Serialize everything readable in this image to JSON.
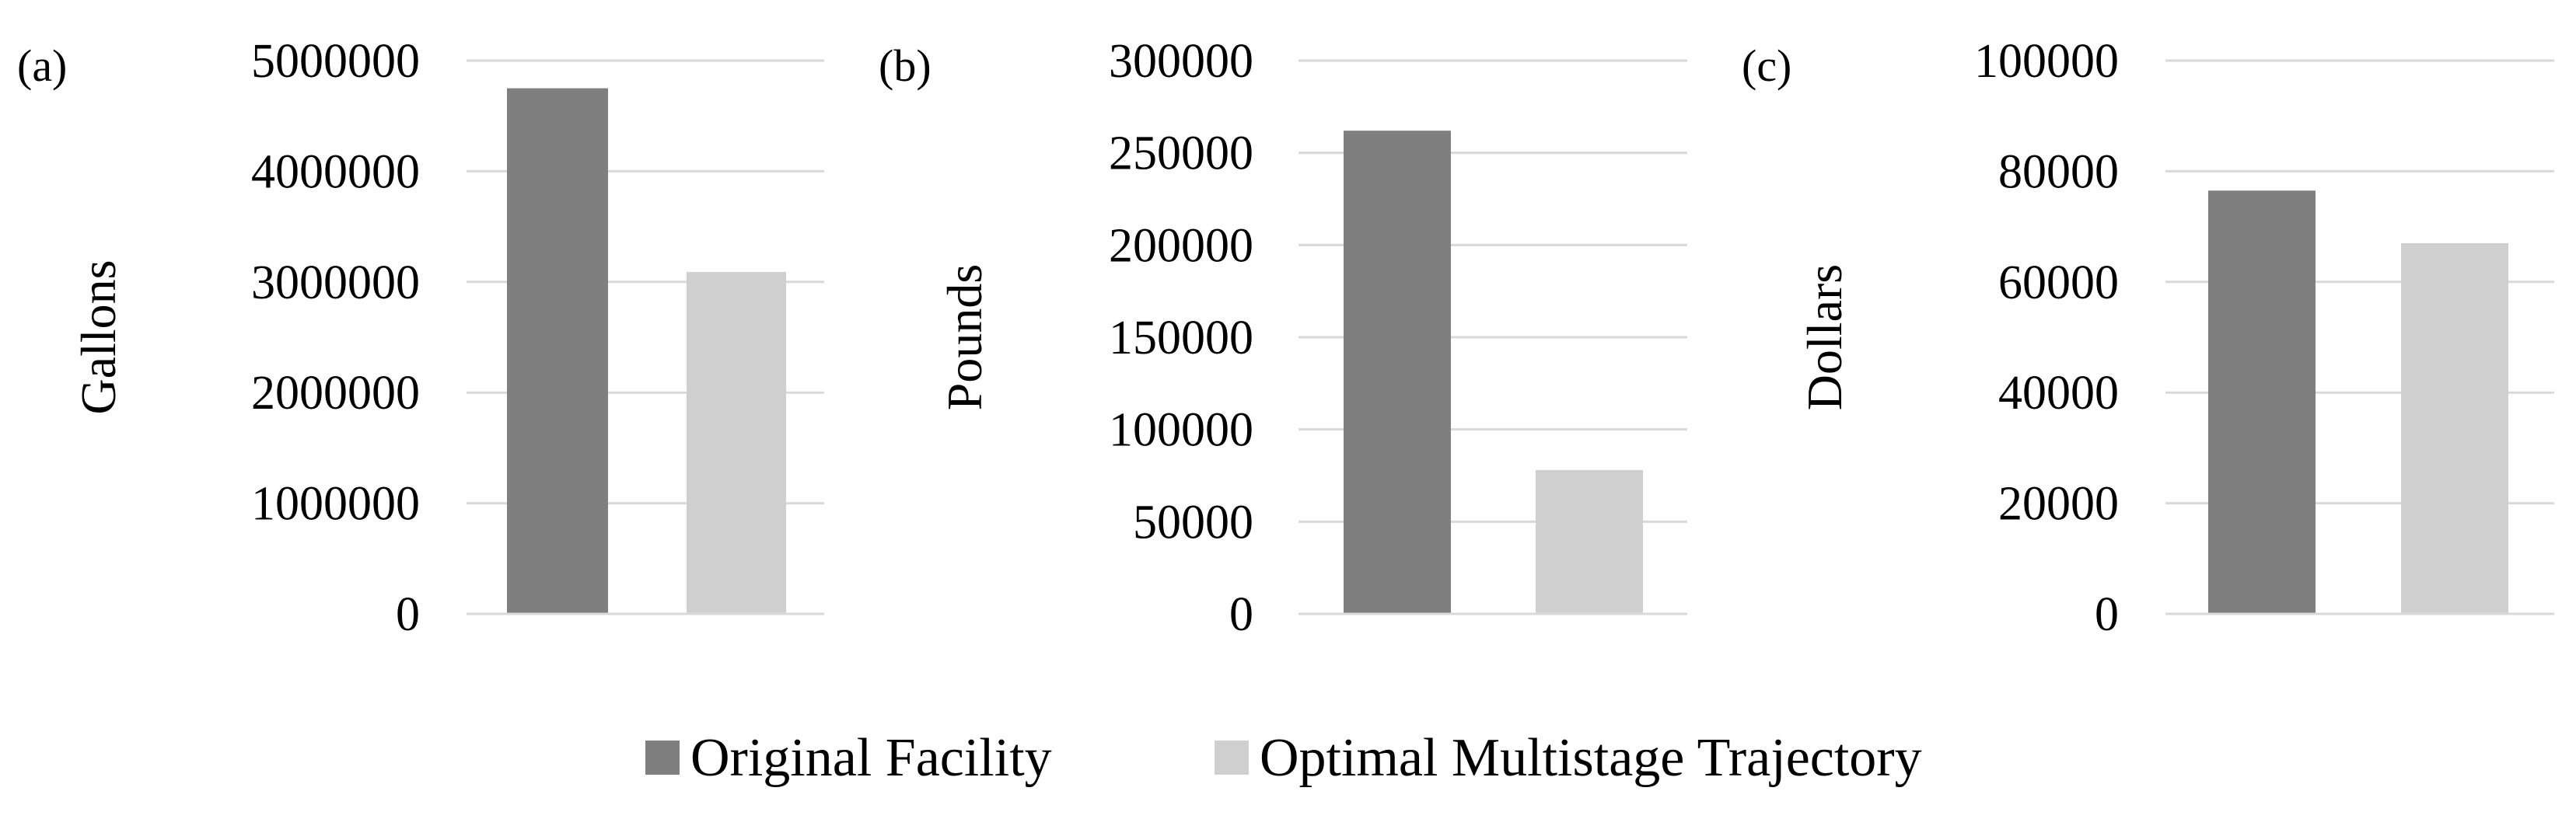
{
  "legend": [
    {
      "name": "Original Facility",
      "color": "#7f7f7f"
    },
    {
      "name": "Optimal Multistage Trajectory",
      "color": "#d0cfd0"
    }
  ],
  "colors": {
    "grid": "#d9d9d9",
    "axis": "#d9d9d9"
  },
  "chart_data": [
    {
      "type": "bar",
      "panel_label": "(a)",
      "ylabel": "Gallons",
      "ylim": [
        0,
        5000000
      ],
      "yticks": [
        "0",
        "1000000",
        "2000000",
        "3000000",
        "4000000",
        "5000000"
      ],
      "series": [
        {
          "name": "Original Facility",
          "values": [
            4750000
          ]
        },
        {
          "name": "Optimal Multistage Trajectory",
          "values": [
            3090000
          ]
        }
      ],
      "grid": true
    },
    {
      "type": "bar",
      "panel_label": "(b)",
      "ylabel": "Pounds",
      "ylim": [
        0,
        300000
      ],
      "yticks": [
        "0",
        "50000",
        "100000",
        "150000",
        "200000",
        "250000",
        "300000"
      ],
      "series": [
        {
          "name": "Original Facility",
          "values": [
            262000
          ]
        },
        {
          "name": "Optimal Multistage Trajectory",
          "values": [
            78000
          ]
        }
      ],
      "grid": true
    },
    {
      "type": "bar",
      "panel_label": "(c)",
      "ylabel": "Dollars",
      "ylim": [
        0,
        100000
      ],
      "yticks": [
        "0",
        "20000",
        "40000",
        "60000",
        "80000",
        "100000"
      ],
      "series": [
        {
          "name": "Original Facility",
          "values": [
            76500
          ]
        },
        {
          "name": "Optimal Multistage Trajectory",
          "values": [
            67000
          ]
        }
      ],
      "grid": true
    }
  ]
}
